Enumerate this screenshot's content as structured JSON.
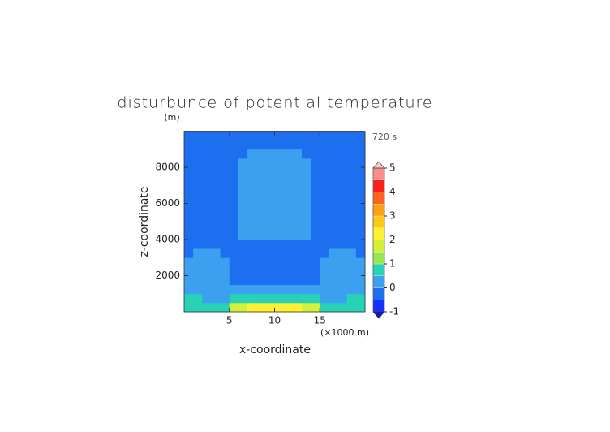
{
  "chart_data": {
    "type": "contour",
    "title": "disturbunce of potential temperature",
    "y_unit": "(m)",
    "time_label": "720 s",
    "xlabel": "x-coordinate",
    "ylabel": "z-coordinate",
    "x_unit": "(×1000 m)",
    "xlim": [
      0,
      20
    ],
    "ylim": [
      0,
      10000
    ],
    "xticks": [
      5,
      10,
      15
    ],
    "yticks": [
      2000,
      4000,
      6000,
      8000
    ],
    "x_edges": [
      0,
      1,
      2,
      3,
      4,
      5,
      6,
      7,
      8,
      9,
      10,
      11,
      12,
      13,
      14,
      15,
      16,
      17,
      18,
      19,
      20
    ],
    "y_edges": [
      0,
      500,
      1000,
      1500,
      2000,
      2500,
      3000,
      3500,
      4000,
      4500,
      5000,
      5500,
      6000,
      6500,
      7000,
      7500,
      8000,
      8500,
      9000,
      9500,
      10000
    ],
    "z": [
      [
        0.75,
        0.75,
        0.75,
        0.75,
        0.75,
        1.75,
        1.75,
        2.25,
        2.25,
        2.25,
        2.25,
        2.25,
        2.25,
        1.75,
        1.75,
        0.75,
        0.75,
        0.75,
        0.75,
        0.75
      ],
      [
        0.75,
        0.75,
        0.25,
        0.25,
        0.25,
        0.75,
        0.75,
        0.75,
        0.75,
        0.75,
        0.75,
        0.75,
        0.75,
        0.75,
        0.75,
        0.25,
        0.25,
        0.25,
        0.75,
        0.75
      ],
      [
        0.25,
        0.25,
        0.25,
        0.25,
        0.25,
        0.25,
        0.25,
        0.25,
        0.25,
        0.25,
        0.25,
        0.25,
        0.25,
        0.25,
        0.25,
        0.25,
        0.25,
        0.25,
        0.25,
        0.25
      ],
      [
        0.25,
        0.25,
        0.25,
        0.25,
        0.25,
        -0.25,
        -0.25,
        -0.25,
        -0.25,
        -0.25,
        -0.25,
        -0.25,
        -0.25,
        -0.25,
        -0.25,
        0.25,
        0.25,
        0.25,
        0.25,
        0.25
      ],
      [
        0.25,
        0.25,
        0.25,
        0.25,
        0.25,
        -0.25,
        -0.25,
        -0.25,
        -0.25,
        -0.25,
        -0.25,
        -0.25,
        -0.25,
        -0.25,
        -0.25,
        0.25,
        0.25,
        0.25,
        0.25,
        0.25
      ],
      [
        0.25,
        0.25,
        0.25,
        0.25,
        0.25,
        -0.25,
        -0.25,
        -0.25,
        -0.25,
        -0.25,
        -0.25,
        -0.25,
        -0.25,
        -0.25,
        -0.25,
        0.25,
        0.25,
        0.25,
        0.25,
        0.25
      ],
      [
        -0.25,
        0.25,
        0.25,
        0.25,
        -0.25,
        -0.25,
        -0.25,
        -0.25,
        -0.25,
        -0.25,
        -0.25,
        -0.25,
        -0.25,
        -0.25,
        -0.25,
        -0.25,
        0.25,
        0.25,
        0.25,
        -0.25
      ],
      [
        -0.25,
        -0.25,
        -0.25,
        -0.25,
        -0.25,
        -0.25,
        -0.25,
        -0.25,
        -0.25,
        -0.25,
        -0.25,
        -0.25,
        -0.25,
        -0.25,
        -0.25,
        -0.25,
        -0.25,
        -0.25,
        -0.25,
        -0.25
      ],
      [
        -0.25,
        -0.25,
        -0.25,
        -0.25,
        -0.25,
        -0.25,
        0.25,
        0.25,
        0.25,
        0.25,
        0.25,
        0.25,
        0.25,
        0.25,
        -0.25,
        -0.25,
        -0.25,
        -0.25,
        -0.25,
        -0.25
      ],
      [
        -0.25,
        -0.25,
        -0.25,
        -0.25,
        -0.25,
        -0.25,
        0.25,
        0.25,
        0.25,
        0.25,
        0.25,
        0.25,
        0.25,
        0.25,
        -0.25,
        -0.25,
        -0.25,
        -0.25,
        -0.25,
        -0.25
      ],
      [
        -0.25,
        -0.25,
        -0.25,
        -0.25,
        -0.25,
        -0.25,
        0.25,
        0.25,
        0.25,
        0.25,
        0.25,
        0.25,
        0.25,
        0.25,
        -0.25,
        -0.25,
        -0.25,
        -0.25,
        -0.25,
        -0.25
      ],
      [
        -0.25,
        -0.25,
        -0.25,
        -0.25,
        -0.25,
        -0.25,
        0.25,
        0.25,
        0.25,
        0.25,
        0.25,
        0.25,
        0.25,
        0.25,
        -0.25,
        -0.25,
        -0.25,
        -0.25,
        -0.25,
        -0.25
      ],
      [
        -0.25,
        -0.25,
        -0.25,
        -0.25,
        -0.25,
        -0.25,
        0.25,
        0.25,
        0.25,
        0.25,
        0.25,
        0.25,
        0.25,
        0.25,
        -0.25,
        -0.25,
        -0.25,
        -0.25,
        -0.25,
        -0.25
      ],
      [
        -0.25,
        -0.25,
        -0.25,
        -0.25,
        -0.25,
        -0.25,
        0.25,
        0.25,
        0.25,
        0.25,
        0.25,
        0.25,
        0.25,
        0.25,
        -0.25,
        -0.25,
        -0.25,
        -0.25,
        -0.25,
        -0.25
      ],
      [
        -0.25,
        -0.25,
        -0.25,
        -0.25,
        -0.25,
        -0.25,
        0.25,
        0.25,
        0.25,
        0.25,
        0.25,
        0.25,
        0.25,
        0.25,
        -0.25,
        -0.25,
        -0.25,
        -0.25,
        -0.25,
        -0.25
      ],
      [
        -0.25,
        -0.25,
        -0.25,
        -0.25,
        -0.25,
        -0.25,
        0.25,
        0.25,
        0.25,
        0.25,
        0.25,
        0.25,
        0.25,
        0.25,
        -0.25,
        -0.25,
        -0.25,
        -0.25,
        -0.25,
        -0.25
      ],
      [
        -0.25,
        -0.25,
        -0.25,
        -0.25,
        -0.25,
        -0.25,
        0.25,
        0.25,
        0.25,
        0.25,
        0.25,
        0.25,
        0.25,
        0.25,
        -0.25,
        -0.25,
        -0.25,
        -0.25,
        -0.25,
        -0.25
      ],
      [
        -0.25,
        -0.25,
        -0.25,
        -0.25,
        -0.25,
        -0.25,
        -0.25,
        0.25,
        0.25,
        0.25,
        0.25,
        0.25,
        0.25,
        -0.25,
        -0.25,
        -0.25,
        -0.25,
        -0.25,
        -0.25,
        -0.25
      ],
      [
        -0.25,
        -0.25,
        -0.25,
        -0.25,
        -0.25,
        -0.25,
        -0.25,
        -0.25,
        -0.25,
        -0.25,
        -0.25,
        -0.25,
        -0.25,
        -0.25,
        -0.25,
        -0.25,
        -0.25,
        -0.25,
        -0.25,
        -0.25
      ],
      [
        -0.25,
        -0.25,
        -0.25,
        -0.25,
        -0.25,
        -0.25,
        -0.25,
        -0.25,
        -0.25,
        -0.25,
        -0.25,
        -0.25,
        -0.25,
        -0.25,
        -0.25,
        -0.25,
        -0.25,
        -0.25,
        -0.25,
        -0.25
      ]
    ],
    "levels": [
      -1,
      -0.5,
      0,
      0.5,
      1,
      1.5,
      2,
      2.5,
      3,
      3.5,
      4,
      4.5,
      5
    ],
    "colors": [
      "#1432ff",
      "#1e6ef0",
      "#3ca0f0",
      "#28d2b4",
      "#96e650",
      "#d2f03c",
      "#fff032",
      "#ffc814",
      "#ffa014",
      "#ff641e",
      "#ff1e1e",
      "#ff8c8c"
    ],
    "under_color": "#0a14c8",
    "over_color": "#ffc8c8",
    "colorbar_ticks": [
      -1,
      0,
      1,
      2,
      3,
      4,
      5
    ]
  }
}
